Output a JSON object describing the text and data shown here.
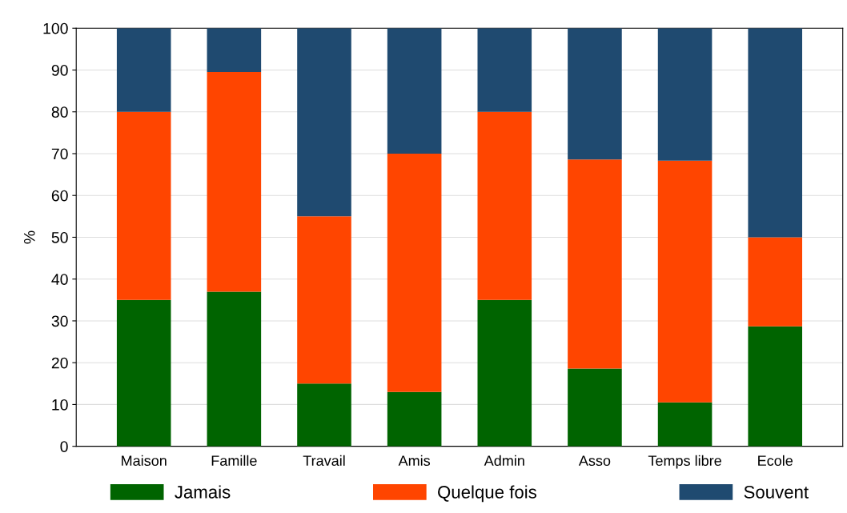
{
  "chart_data": {
    "type": "bar",
    "stacked": true,
    "ylabel": "%",
    "categories": [
      "Maison",
      "Famille",
      "Travail",
      "Amis",
      "Admin",
      "Asso",
      "Temps libre",
      "Ecole"
    ],
    "series": [
      {
        "name": "Jamais",
        "color": "#006400",
        "values": [
          35,
          37,
          15,
          13,
          35,
          18.6,
          10.5,
          28.7
        ]
      },
      {
        "name": "Quelque fois",
        "color": "#ff4500",
        "values": [
          45,
          52.5,
          40,
          57,
          45,
          50,
          57.8,
          21.3
        ]
      },
      {
        "name": "Souvent",
        "color": "#1f4a70",
        "values": [
          20,
          10.5,
          45,
          30,
          20,
          31.4,
          31.7,
          50
        ]
      }
    ],
    "ylim": [
      0,
      100
    ],
    "yticks": [
      0,
      10,
      20,
      30,
      40,
      50,
      60,
      70,
      80,
      90,
      100
    ],
    "grid": "y",
    "legend": "bottom"
  }
}
